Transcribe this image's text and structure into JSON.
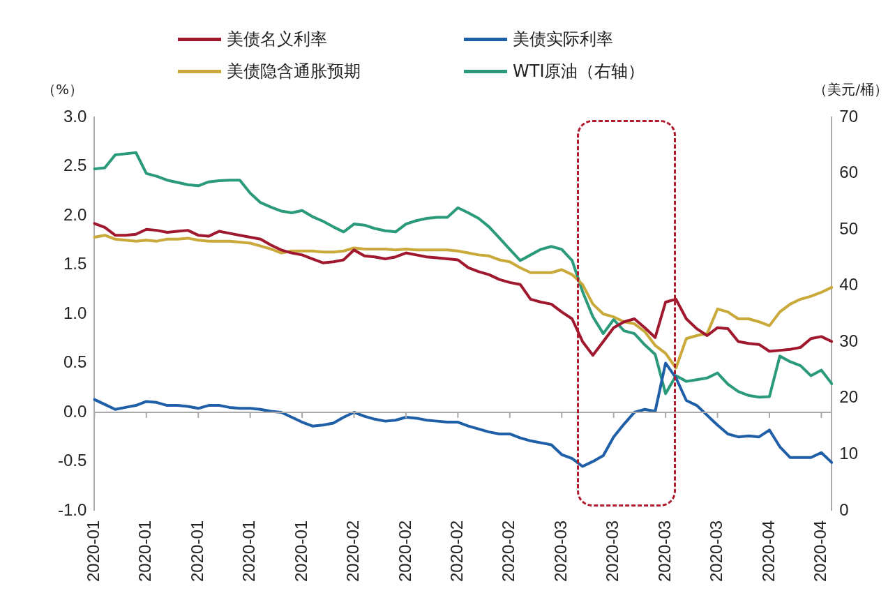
{
  "chart_data": {
    "type": "line",
    "ylabel": "（%）",
    "y2label": "（美元/桶）",
    "categories": [
      "2020-01",
      null,
      null,
      null,
      null,
      "2020-01",
      null,
      null,
      null,
      null,
      "2020-01",
      null,
      null,
      null,
      null,
      "2020-01",
      null,
      null,
      null,
      null,
      "2020-01",
      null,
      null,
      null,
      null,
      "2020-02",
      null,
      null,
      null,
      null,
      "2020-02",
      null,
      null,
      null,
      null,
      "2020-02",
      null,
      null,
      null,
      null,
      "2020-02",
      null,
      null,
      null,
      null,
      "2020-03",
      null,
      null,
      null,
      null,
      "2020-03",
      null,
      null,
      null,
      null,
      "2020-03",
      null,
      null,
      null,
      null,
      "2020-03",
      null,
      null,
      null,
      null,
      "2020-04",
      null,
      null,
      null,
      null,
      "2020-04",
      null
    ],
    "series": [
      {
        "name": "美债名义利率",
        "color": "#a0182e",
        "values": [
          1.92,
          1.88,
          1.8,
          1.8,
          1.81,
          1.86,
          1.85,
          1.83,
          1.84,
          1.85,
          1.8,
          1.79,
          1.84,
          1.82,
          1.8,
          1.78,
          1.76,
          1.7,
          1.65,
          1.62,
          1.6,
          1.56,
          1.52,
          1.53,
          1.55,
          1.65,
          1.59,
          1.58,
          1.56,
          1.58,
          1.62,
          1.6,
          1.58,
          1.57,
          1.56,
          1.55,
          1.47,
          1.43,
          1.4,
          1.35,
          1.32,
          1.3,
          1.15,
          1.12,
          1.1,
          1.02,
          0.95,
          0.72,
          0.58,
          0.72,
          0.86,
          0.92,
          0.95,
          0.86,
          0.76,
          1.12,
          1.15,
          0.95,
          0.85,
          0.78,
          0.86,
          0.85,
          0.72,
          0.7,
          0.69,
          0.62,
          0.63,
          0.64,
          0.66,
          0.75,
          0.77,
          0.72
        ]
      },
      {
        "name": "美债实际利率",
        "color": "#1f5fa8",
        "values": [
          0.13,
          0.08,
          0.03,
          0.05,
          0.07,
          0.11,
          0.1,
          0.07,
          0.07,
          0.06,
          0.04,
          0.07,
          0.07,
          0.05,
          0.04,
          0.04,
          0.03,
          0.01,
          0.0,
          -0.05,
          -0.1,
          -0.14,
          -0.13,
          -0.11,
          -0.05,
          0.0,
          -0.04,
          -0.07,
          -0.09,
          -0.08,
          -0.05,
          -0.06,
          -0.08,
          -0.09,
          -0.1,
          -0.1,
          -0.14,
          -0.17,
          -0.2,
          -0.22,
          -0.22,
          -0.26,
          -0.29,
          -0.31,
          -0.33,
          -0.43,
          -0.47,
          -0.55,
          -0.5,
          -0.44,
          -0.25,
          -0.12,
          0.0,
          0.03,
          0.01,
          0.5,
          0.35,
          0.12,
          0.07,
          -0.03,
          -0.13,
          -0.22,
          -0.25,
          -0.24,
          -0.25,
          -0.18,
          -0.35,
          -0.46,
          -0.46,
          -0.46,
          -0.41,
          -0.51
        ]
      },
      {
        "name": "美债隐含通胀预期",
        "color": "#c9a93a",
        "values": [
          1.78,
          1.8,
          1.76,
          1.75,
          1.74,
          1.75,
          1.74,
          1.76,
          1.76,
          1.77,
          1.75,
          1.74,
          1.74,
          1.74,
          1.73,
          1.72,
          1.69,
          1.66,
          1.62,
          1.64,
          1.64,
          1.64,
          1.63,
          1.63,
          1.64,
          1.67,
          1.66,
          1.66,
          1.66,
          1.65,
          1.66,
          1.65,
          1.65,
          1.65,
          1.65,
          1.64,
          1.62,
          1.6,
          1.59,
          1.55,
          1.53,
          1.47,
          1.42,
          1.42,
          1.42,
          1.45,
          1.4,
          1.3,
          1.1,
          1.0,
          0.97,
          0.92,
          0.9,
          0.82,
          0.68,
          0.6,
          0.45,
          0.75,
          0.78,
          0.8,
          1.05,
          1.02,
          0.95,
          0.95,
          0.92,
          0.88,
          1.02,
          1.1,
          1.15,
          1.18,
          1.22,
          1.27
        ]
      },
      {
        "name": "WTI原油（右轴）",
        "color": "#2a9a7a",
        "axis": "y2",
        "values": [
          60.8,
          61.0,
          63.3,
          63.5,
          63.7,
          60.0,
          59.5,
          58.8,
          58.4,
          58.0,
          57.8,
          58.5,
          58.7,
          58.8,
          58.8,
          56.5,
          54.8,
          54.0,
          53.3,
          53.0,
          53.4,
          52.3,
          51.5,
          50.5,
          49.6,
          51.0,
          50.8,
          50.2,
          49.8,
          49.6,
          51.0,
          51.6,
          52.0,
          52.2,
          52.2,
          53.9,
          53.0,
          52.0,
          50.5,
          48.5,
          46.5,
          44.5,
          45.5,
          46.5,
          47.0,
          46.5,
          44.5,
          39.0,
          34.5,
          31.5,
          34.0,
          32.0,
          31.5,
          29.5,
          27.8,
          20.8,
          24.0,
          23.0,
          23.3,
          23.6,
          24.5,
          22.5,
          21.2,
          20.5,
          20.2,
          20.3,
          27.5,
          26.5,
          25.8,
          24.0,
          25.0,
          22.6
        ]
      }
    ],
    "ylim": [
      -1,
      3
    ],
    "yticks": [
      {
        "value": -1,
        "label": "-1.0"
      },
      {
        "value": -0.5,
        "label": "-0.5"
      },
      {
        "value": 0,
        "label": "0.0"
      },
      {
        "value": 0.5,
        "label": "0.5"
      },
      {
        "value": 1,
        "label": "1.0"
      },
      {
        "value": 1.5,
        "label": "1.5"
      },
      {
        "value": 2,
        "label": "2.0"
      },
      {
        "value": 2.5,
        "label": "2.5"
      },
      {
        "value": 3,
        "label": "3.0"
      }
    ],
    "y2lim": [
      0,
      70
    ],
    "y2ticks": [
      0,
      10,
      20,
      30,
      40,
      50,
      60,
      70
    ],
    "ref_lines": [
      {
        "axis": "y",
        "value": 0,
        "color": "#aaaaaa"
      }
    ],
    "grid": false,
    "legend": "top",
    "marker": "none",
    "line_style": "solid"
  }
}
